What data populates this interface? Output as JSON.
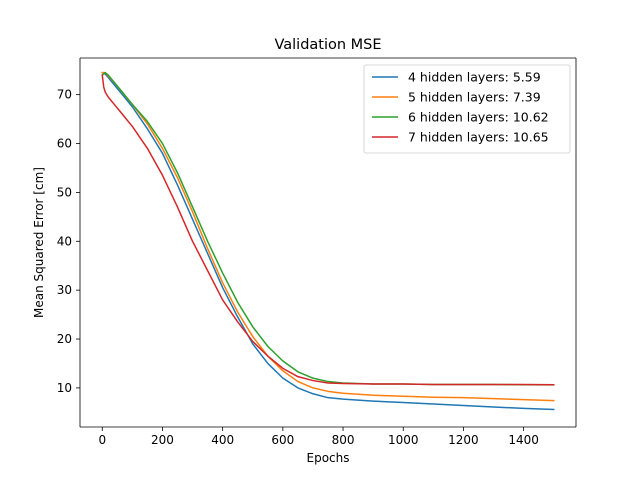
{
  "chart_data": {
    "type": "line",
    "title": "Validation MSE",
    "xlabel": "Epochs",
    "ylabel": "Mean Squared Error [cm]",
    "xlim": [
      -74,
      1574
    ],
    "ylim": [
      2,
      77.5
    ],
    "xticks": [
      0,
      200,
      400,
      600,
      800,
      1000,
      1200,
      1400
    ],
    "yticks": [
      10,
      20,
      30,
      40,
      50,
      60,
      70
    ],
    "grid": false,
    "legend_position": "top-right",
    "series": [
      {
        "name": "4 hidden layers: 5.59",
        "color": "#1f77b4",
        "x": [
          0,
          10,
          20,
          40,
          60,
          80,
          100,
          150,
          200,
          250,
          300,
          350,
          400,
          450,
          500,
          550,
          600,
          650,
          700,
          750,
          800,
          900,
          1000,
          1100,
          1200,
          1300,
          1400,
          1500
        ],
        "y": [
          74.5,
          74.2,
          73.5,
          72.0,
          70.5,
          69.0,
          67.5,
          63.0,
          58.0,
          51.5,
          44.5,
          37.5,
          30.5,
          24.5,
          19.0,
          15.0,
          12.0,
          10.0,
          8.8,
          8.0,
          7.7,
          7.3,
          7.0,
          6.7,
          6.4,
          6.1,
          5.8,
          5.59
        ]
      },
      {
        "name": "5 hidden layers: 7.39",
        "color": "#ff7f0e",
        "x": [
          0,
          10,
          20,
          40,
          60,
          80,
          100,
          150,
          200,
          250,
          300,
          350,
          400,
          450,
          500,
          550,
          600,
          650,
          700,
          750,
          800,
          900,
          1000,
          1100,
          1200,
          1300,
          1400,
          1500
        ],
        "y": [
          74.5,
          74.5,
          73.8,
          72.5,
          71.0,
          69.5,
          68.0,
          64.0,
          59.0,
          53.0,
          46.0,
          38.5,
          31.5,
          25.5,
          20.5,
          16.5,
          13.5,
          11.3,
          10.0,
          9.3,
          8.9,
          8.5,
          8.3,
          8.1,
          8.0,
          7.8,
          7.6,
          7.39
        ]
      },
      {
        "name": "6 hidden layers: 10.62",
        "color": "#2ca02c",
        "x": [
          0,
          10,
          20,
          40,
          60,
          80,
          100,
          150,
          200,
          250,
          300,
          350,
          400,
          450,
          500,
          550,
          600,
          650,
          700,
          750,
          800,
          900,
          1000,
          1100,
          1200,
          1300,
          1400,
          1500
        ],
        "y": [
          74.0,
          74.5,
          74.0,
          72.5,
          71.0,
          69.5,
          68.0,
          64.5,
          60.0,
          54.0,
          47.0,
          40.0,
          33.5,
          27.5,
          22.5,
          18.5,
          15.5,
          13.3,
          12.0,
          11.3,
          11.0,
          10.8,
          10.8,
          10.7,
          10.7,
          10.7,
          10.65,
          10.62
        ]
      },
      {
        "name": "7 hidden layers: 10.65",
        "color": "#d62728",
        "x": [
          0,
          5,
          10,
          20,
          40,
          60,
          80,
          100,
          150,
          200,
          250,
          300,
          350,
          400,
          450,
          500,
          550,
          600,
          650,
          700,
          750,
          800,
          900,
          1000,
          1100,
          1200,
          1300,
          1400,
          1500
        ],
        "y": [
          74.0,
          71.5,
          70.5,
          69.5,
          68.0,
          66.5,
          65.0,
          63.5,
          59.0,
          53.5,
          47.0,
          40.0,
          34.0,
          28.0,
          23.5,
          19.5,
          16.5,
          14.0,
          12.3,
          11.5,
          11.0,
          10.9,
          10.8,
          10.8,
          10.7,
          10.7,
          10.7,
          10.7,
          10.65
        ]
      }
    ]
  }
}
